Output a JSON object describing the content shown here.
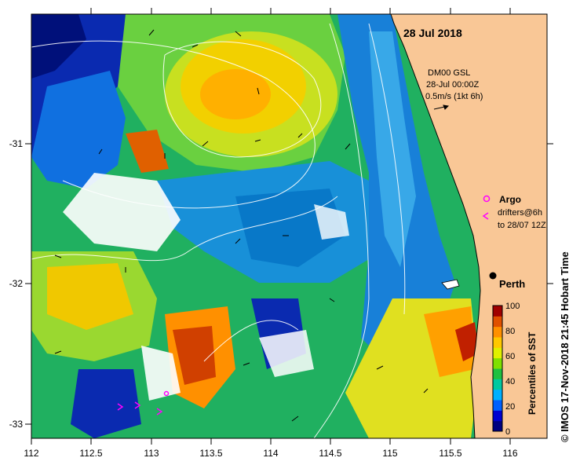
{
  "date_label": "28 Jul 2018",
  "model_info": {
    "line1": "DM00 GSL",
    "line2": "28-Jul 00:00Z",
    "line3": "0.5m/s (1kt 6h)"
  },
  "legend": {
    "argo_label": "Argo",
    "drifters_line1": "drifters@6h",
    "drifters_line2": "to 28/07 12Z"
  },
  "city_label": "Perth",
  "colorbar": {
    "title": "Percentiles of SST",
    "ticks": [
      "0",
      "20",
      "40",
      "60",
      "80",
      "100"
    ],
    "colors": [
      "#000080",
      "#0000d0",
      "#0060ff",
      "#00b0ff",
      "#00c8a0",
      "#20c040",
      "#80e000",
      "#e0f000",
      "#ffc800",
      "#ff9000",
      "#e05000",
      "#a00000"
    ]
  },
  "footer": "© IMOS 17-Nov-2018 21:45 Hobart Time",
  "axes": {
    "x_ticks": [
      "112",
      "112.5",
      "113",
      "113.5",
      "114",
      "114.5",
      "115",
      "115.5",
      "116"
    ],
    "y_ticks": [
      "-31",
      "-32",
      "-33"
    ]
  },
  "colors": {
    "land": "#f9c796",
    "border": "#000000"
  }
}
